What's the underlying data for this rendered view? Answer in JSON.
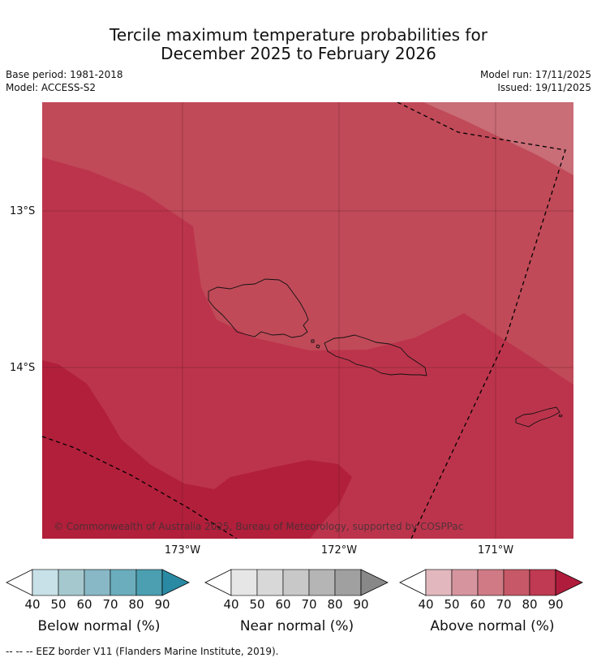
{
  "title_line1": "Tercile maximum temperature probabilities for",
  "title_line2": "December 2025 to February 2026",
  "base_period": "Base period: 1981-2018",
  "model": "Model: ACCESS-S2",
  "model_run": "Model run: 17/11/2025",
  "issued": "Issued: 19/11/2025",
  "lat_labels": [
    "13°S",
    "14°S"
  ],
  "lon_labels": [
    "173°W",
    "172°W",
    "171°W"
  ],
  "copyright": "© Commonwealth of Australia 2025, Bureau of Meteorology, supported by COSPPac",
  "footnote": "--  --  -- EEZ border V11 (Flanders Marine Institute, 2019).",
  "colorbars": [
    {
      "label": "Below normal (%)",
      "ticks": [
        "40",
        "50",
        "60",
        "70",
        "80",
        "90"
      ],
      "colors": [
        "#c8e1e8",
        "#a5c8ce",
        "#88b8c5",
        "#6badbc",
        "#4b9fb0",
        "#2a8aa3"
      ]
    },
    {
      "label": "Near normal (%)",
      "ticks": [
        "40",
        "50",
        "60",
        "70",
        "80",
        "90"
      ],
      "colors": [
        "#e6e6e6",
        "#d8d8d8",
        "#c8c8c8",
        "#b5b5b5",
        "#a0a0a0",
        "#888888"
      ]
    },
    {
      "label": "Above normal (%)",
      "ticks": [
        "40",
        "50",
        "60",
        "70",
        "80",
        "90"
      ],
      "colors": [
        "#e2b8be",
        "#d6959e",
        "#cf7a85",
        "#c65867",
        "#bf3a52",
        "#b01c3c"
      ]
    }
  ],
  "map_colors": {
    "p60": "#c96d77",
    "p70": "#c04a58",
    "p80": "#bc344c",
    "p90": "#b11f3b"
  }
}
